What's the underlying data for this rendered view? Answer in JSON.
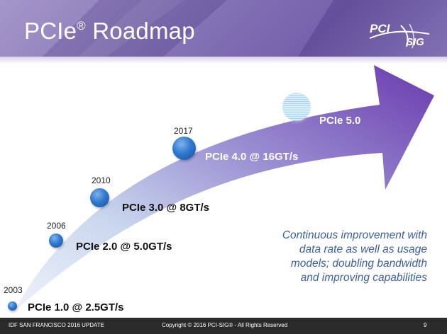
{
  "header": {
    "title": "PCIe",
    "title_mark": "®",
    "title_rest": " Roadmap",
    "logo_top": "PCI",
    "logo_bottom": "SIG"
  },
  "milestones": [
    {
      "year": "2003",
      "label": "PCIe 1.0 @ 2.5GT/s"
    },
    {
      "year": "2006",
      "label": "PCIe 2.0 @ 5.0GT/s"
    },
    {
      "year": "2010",
      "label": "PCIe 3.0 @ 8GT/s"
    },
    {
      "year": "2017",
      "label": "PCIe 4.0 @ 16GT/s"
    },
    {
      "year": "",
      "label": "PCIe 5.0"
    }
  ],
  "caption_lines": [
    "Continuous improvement with",
    "data rate as well as usage",
    "models; doubling bandwidth",
    "and improving capabilities"
  ],
  "footer": {
    "left": "IDF SAN FRANCISCO 2016 UPDATE",
    "center": "Copyright © 2016 PCI-SIG® - All Rights Reserved",
    "page": "9"
  },
  "colors": {
    "header": "#7f6db3",
    "arrow_start": "#dde8f5",
    "arrow_end": "#6e3fb0",
    "dot": "#2f79cf",
    "caption": "#3b5fa3",
    "footer": "#2a2a2a"
  }
}
